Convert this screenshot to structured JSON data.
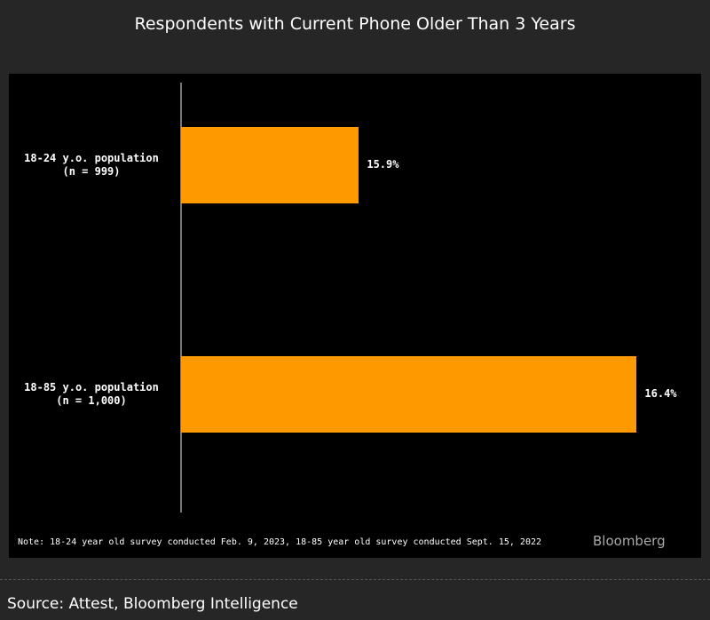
{
  "chart_data": {
    "type": "bar",
    "orientation": "horizontal",
    "title": "Respondents with Current Phone Older Than 3 Years",
    "categories": [
      "18-24 y.o. population\n(n = 999)",
      "18-85 y.o. population\n(n = 1,000)"
    ],
    "values": [
      15.9,
      16.4
    ],
    "value_labels": [
      "15.9%",
      "16.4%"
    ],
    "color": "#ff9900",
    "xlim": [
      15.58,
      16.5
    ],
    "note": "Note: 18-24 year old survey conducted Feb. 9, 2023, 18-85 year old survey conducted Sept. 15, 2022",
    "watermark": "Bloomberg",
    "source": "Source: Attest, Bloomberg Intelligence"
  }
}
